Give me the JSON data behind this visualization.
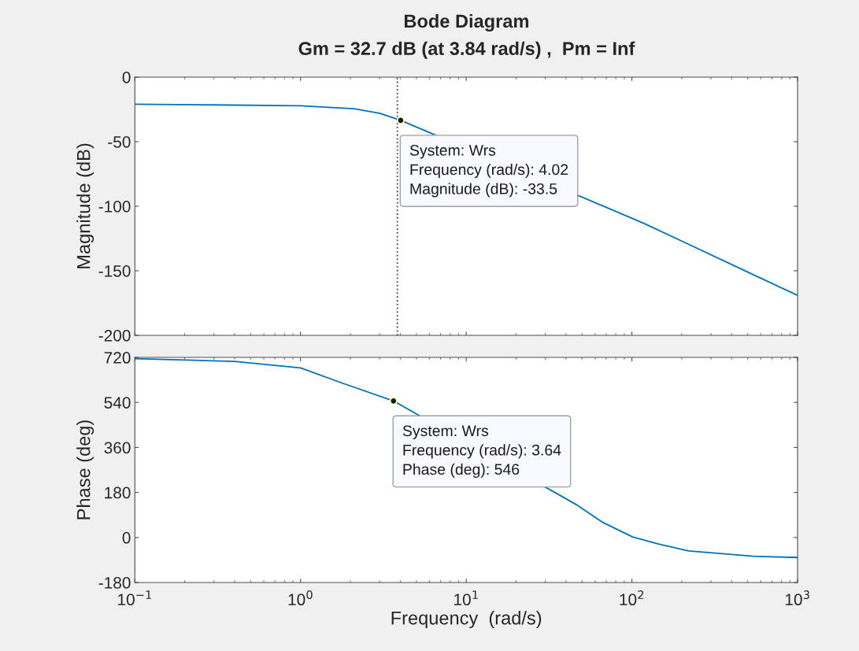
{
  "chart_data": [
    {
      "type": "line",
      "title": "Bode Diagram",
      "subtitle": "Gm = 32.7 dB (at 3.84 rad/s) ,  Pm = Inf",
      "ylabel": "Magnitude (dB)",
      "log": "x",
      "xlim": [
        0.1,
        1000
      ],
      "ylim": [
        -200,
        0
      ],
      "xticks": [
        0.1,
        1,
        10,
        100,
        1000
      ],
      "yticks": [
        -200,
        -150,
        -100,
        -50,
        0
      ],
      "tick_labels": "y",
      "grid": false,
      "legend": false,
      "marker": "none",
      "line_style": "solid",
      "x": [
        0.1,
        0.3,
        1,
        2.1,
        3.0,
        4.02,
        117,
        200,
        500,
        1000
      ],
      "series": [
        {
          "color": "#0072bd",
          "values": [
            -21,
            -21.5,
            -22.2,
            -24.5,
            -28,
            -33.5,
            -113,
            -127,
            -151,
            -169
          ]
        }
      ],
      "ref_lines": [
        {
          "axis": "x",
          "value": 3.84,
          "line_style": "dotted",
          "color": "#404040"
        }
      ],
      "annotations": [
        {
          "text": "System: Wrs\nFrequency (rad/s): 4.02\nMagnitude (dB): -33.5",
          "x": 4.02,
          "y": -33.5
        }
      ]
    },
    {
      "type": "line",
      "xlabel": "Frequency  (rad/s)",
      "ylabel": "Phase (deg)",
      "log": "x",
      "xlim": [
        0.1,
        1000
      ],
      "xticks": [
        {
          "value": 0.1,
          "label": "10$^{−1}$"
        },
        {
          "value": 1,
          "label": "10$^{0}$"
        },
        {
          "value": 10,
          "label": "10$^{1}$"
        },
        {
          "value": 100,
          "label": "10$^{2}$"
        },
        {
          "value": 1000,
          "label": "10$^{3}$"
        }
      ],
      "ylim": [
        -180,
        720
      ],
      "yticks": [
        -180,
        0,
        180,
        360,
        540,
        720
      ],
      "grid": false,
      "legend": false,
      "marker": "none",
      "line_style": "solid",
      "x": [
        0.1,
        0.4,
        1,
        1.79,
        3.64,
        46,
        66,
        101,
        145,
        220,
        541,
        1000
      ],
      "series": [
        {
          "color": "#0072bd",
          "values": [
            715,
            704,
            678,
            617,
            546,
            132,
            62,
            2,
            -26,
            -54,
            -75,
            -80
          ]
        }
      ],
      "annotations": [
        {
          "text": "System: Wrs\nFrequency (rad/s): 3.64\nPhase (deg): 546",
          "x": 3.64,
          "y": 546
        }
      ]
    }
  ]
}
